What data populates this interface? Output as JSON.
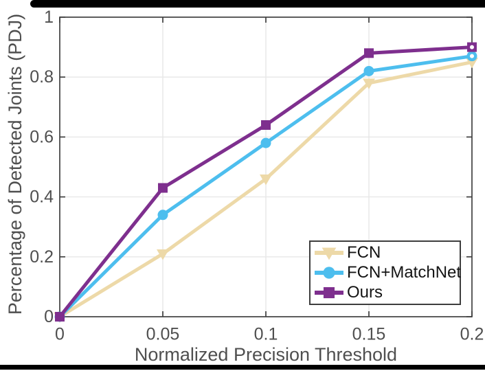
{
  "chart_data": {
    "type": "line",
    "title": "",
    "xlabel": "Normalized Precision Threshold",
    "ylabel": "Percentage of Detected Joints (PDJ)",
    "x": [
      0,
      0.05,
      0.1,
      0.15,
      0.2
    ],
    "xlim": [
      0,
      0.2
    ],
    "ylim": [
      0,
      1
    ],
    "xtick_labels": [
      "0",
      "0.05",
      "0.1",
      "0.15",
      "0.2"
    ],
    "ytick_labels": [
      "0",
      "0.2",
      "0.4",
      "0.6",
      "0.8",
      "1"
    ],
    "grid": true,
    "legend_position": "lower-right",
    "axis_color": "#3f3f3f",
    "grid_color": "#e7e7e7",
    "label_color": "#4f4f4f",
    "series": [
      {
        "name": "FCN",
        "color": "#EDD9A8",
        "marker": "triangle-down",
        "values": [
          0,
          0.21,
          0.46,
          0.78,
          0.85
        ]
      },
      {
        "name": "FCN+MatchNet",
        "color": "#4DBEEE",
        "marker": "circle",
        "values": [
          0,
          0.34,
          0.58,
          0.82,
          0.87
        ],
        "end_dot": true
      },
      {
        "name": "Ours",
        "color": "#7E2F8E",
        "marker": "square",
        "values": [
          0,
          0.43,
          0.64,
          0.88,
          0.9
        ],
        "end_dot": true
      }
    ]
  }
}
